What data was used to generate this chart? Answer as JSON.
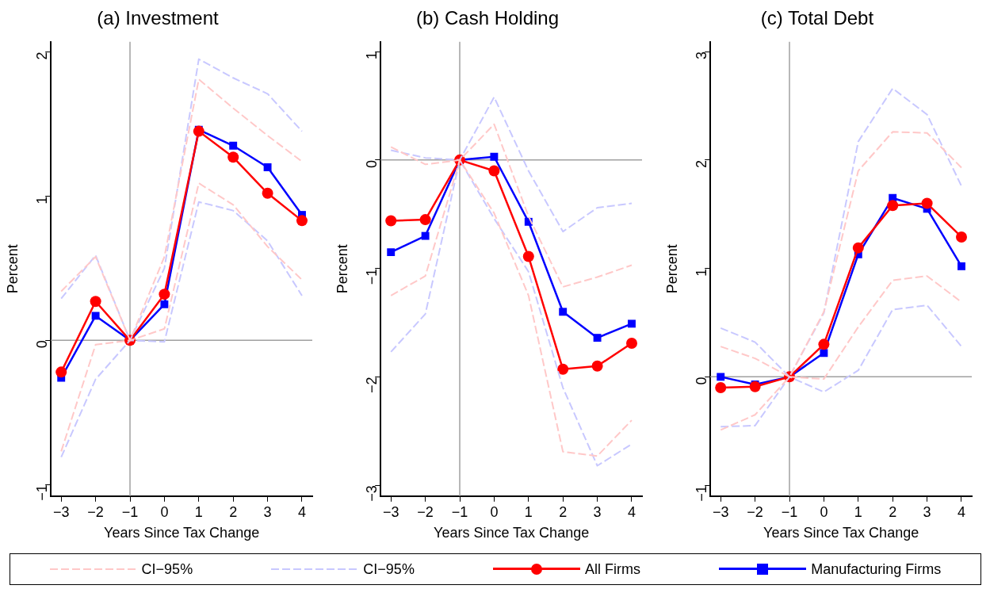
{
  "chart_data": [
    {
      "type": "line",
      "title": "(a) Investment",
      "xlabel": "Years Since Tax Change",
      "ylabel": "Percent",
      "x": [
        -3,
        -2,
        -1,
        0,
        1,
        2,
        3,
        4
      ],
      "xlim": [
        -3.3,
        4.3
      ],
      "xticks": [
        {
          "value": -3,
          "label": "−3"
        },
        {
          "value": -2,
          "label": "−2"
        },
        {
          "value": -1,
          "label": "−1"
        },
        0,
        1,
        2,
        3,
        4
      ],
      "ylim": [
        -1.08,
        2.07
      ],
      "yticks": [
        {
          "value": -1,
          "label": "−1"
        },
        0,
        1,
        2
      ],
      "grid": false,
      "legend": "bottom",
      "ref_lines": [
        {
          "axis": "x",
          "value": -1,
          "color": "#a0a0a0"
        },
        {
          "axis": "y",
          "value": 0,
          "color": "#a0a0a0"
        }
      ],
      "series": [
        {
          "name": "CI−95%",
          "color": "#ffc8c8",
          "line_style": "dashed",
          "marker": "none",
          "values": [
            0.34,
            0.58,
            0,
            0.58,
            1.81,
            1.61,
            1.42,
            1.24
          ]
        },
        {
          "color": "#ffc8c8",
          "line_style": "dashed",
          "marker": "none",
          "values": [
            -0.77,
            -0.03,
            0,
            0.08,
            1.09,
            0.94,
            0.65,
            0.42
          ]
        },
        {
          "name": "CI−95%",
          "color": "#c8c8ff",
          "line_style": "dashed",
          "marker": "none",
          "values": [
            0.29,
            0.59,
            0,
            0.5,
            1.95,
            1.82,
            1.71,
            1.45
          ]
        },
        {
          "color": "#c8c8ff",
          "line_style": "dashed",
          "marker": "none",
          "values": [
            -0.81,
            -0.27,
            0,
            -0.01,
            0.96,
            0.9,
            0.69,
            0.31
          ]
        },
        {
          "name": "All Firms",
          "color": "#ff0000",
          "line_style": "solid",
          "marker": "circle",
          "values": [
            -0.22,
            0.27,
            0,
            0.32,
            1.45,
            1.27,
            1.02,
            0.83
          ]
        },
        {
          "name": "Manufacturing Firms",
          "color": "#0000ff",
          "line_style": "solid",
          "marker": "square",
          "values": [
            -0.26,
            0.17,
            0,
            0.25,
            1.46,
            1.35,
            1.2,
            0.87
          ]
        }
      ]
    },
    {
      "type": "line",
      "title": "(b) Cash Holding",
      "xlabel": "Years Since Tax Change",
      "ylabel": "Percent",
      "x": [
        -3,
        -2,
        -1,
        0,
        1,
        2,
        3,
        4
      ],
      "xlim": [
        -3.3,
        4.3
      ],
      "xticks": [
        {
          "value": -3,
          "label": "−3"
        },
        {
          "value": -2,
          "label": "−2"
        },
        {
          "value": -1,
          "label": "−1"
        },
        0,
        1,
        2,
        3,
        4
      ],
      "ylim": [
        -3.1,
        1.09
      ],
      "yticks": [
        {
          "value": -3,
          "label": "−3"
        },
        {
          "value": -2,
          "label": "−2"
        },
        {
          "value": -1,
          "label": "−1"
        },
        0,
        1
      ],
      "grid": false,
      "ref_lines": [
        {
          "axis": "x",
          "value": -1,
          "color": "#a0a0a0"
        },
        {
          "axis": "y",
          "value": 0,
          "color": "#a0a0a0"
        }
      ],
      "series": [
        {
          "color": "#ffc8c8",
          "line_style": "dashed",
          "marker": "none",
          "values": [
            0.12,
            -0.04,
            0,
            0.33,
            -0.52,
            -1.17,
            -1.08,
            -0.97
          ]
        },
        {
          "color": "#ffc8c8",
          "line_style": "dashed",
          "marker": "none",
          "values": [
            -1.25,
            -1.07,
            0,
            -0.49,
            -1.25,
            -2.69,
            -2.73,
            -2.4
          ]
        },
        {
          "color": "#c8c8ff",
          "line_style": "dashed",
          "marker": "none",
          "values": [
            0.09,
            0.02,
            0,
            0.58,
            -0.1,
            -0.66,
            -0.44,
            -0.4
          ]
        },
        {
          "color": "#c8c8ff",
          "line_style": "dashed",
          "marker": "none",
          "values": [
            -1.77,
            -1.42,
            0,
            -0.54,
            -1.03,
            -2.1,
            -2.82,
            -2.62
          ]
        },
        {
          "color": "#ff0000",
          "line_style": "solid",
          "marker": "circle",
          "values": [
            -0.56,
            -0.55,
            0,
            -0.1,
            -0.89,
            -1.93,
            -1.9,
            -1.69
          ]
        },
        {
          "color": "#0000ff",
          "line_style": "solid",
          "marker": "square",
          "values": [
            -0.85,
            -0.7,
            0,
            0.03,
            -0.57,
            -1.4,
            -1.64,
            -1.51
          ]
        }
      ]
    },
    {
      "type": "line",
      "title": "(c) Total Debt",
      "xlabel": "Years Since Tax Change",
      "ylabel": "Percent",
      "x": [
        -3,
        -2,
        -1,
        0,
        1,
        2,
        3,
        4
      ],
      "xlim": [
        -3.3,
        4.3
      ],
      "xticks": [
        {
          "value": -3,
          "label": "−3"
        },
        {
          "value": -2,
          "label": "−2"
        },
        {
          "value": -1,
          "label": "−1"
        },
        0,
        1,
        2,
        3,
        4
      ],
      "ylim": [
        -1.1,
        3.09
      ],
      "yticks": [
        {
          "value": -1,
          "label": "−1"
        },
        0,
        1,
        2,
        3
      ],
      "grid": false,
      "ref_lines": [
        {
          "axis": "x",
          "value": -1,
          "color": "#a0a0a0"
        },
        {
          "axis": "y",
          "value": 0,
          "color": "#a0a0a0"
        }
      ],
      "series": [
        {
          "color": "#ffc8c8",
          "line_style": "dashed",
          "marker": "none",
          "values": [
            0.28,
            0.17,
            0,
            0.6,
            1.9,
            2.26,
            2.25,
            1.93
          ]
        },
        {
          "color": "#ffc8c8",
          "line_style": "dashed",
          "marker": "none",
          "values": [
            -0.49,
            -0.35,
            0,
            -0.02,
            0.46,
            0.89,
            0.93,
            0.69
          ]
        },
        {
          "color": "#c8c8ff",
          "line_style": "dashed",
          "marker": "none",
          "values": [
            0.45,
            0.32,
            0,
            0.59,
            2.17,
            2.66,
            2.42,
            1.76
          ]
        },
        {
          "color": "#c8c8ff",
          "line_style": "dashed",
          "marker": "none",
          "values": [
            -0.46,
            -0.45,
            0,
            -0.14,
            0.06,
            0.62,
            0.66,
            0.28
          ]
        },
        {
          "color": "#ff0000",
          "line_style": "solid",
          "marker": "circle",
          "values": [
            -0.1,
            -0.09,
            0,
            0.3,
            1.19,
            1.58,
            1.6,
            1.29
          ]
        },
        {
          "color": "#0000ff",
          "line_style": "solid",
          "marker": "square",
          "values": [
            0,
            -0.07,
            0,
            0.22,
            1.13,
            1.65,
            1.55,
            1.02
          ]
        }
      ]
    }
  ]
}
